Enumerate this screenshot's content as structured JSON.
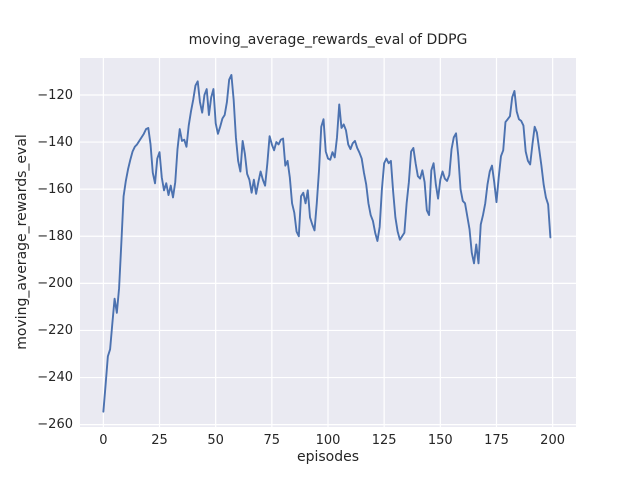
{
  "title": "moving_average_rewards_eval of DDPG",
  "colors": {
    "line": "#4c72b0",
    "axes_background": "#eaeaf2",
    "grid": "#ffffff",
    "text": "#262626",
    "figure_background": "#ffffff"
  },
  "chart_data": {
    "type": "line",
    "title": "moving_average_rewards_eval of DDPG",
    "xlabel": "episodes",
    "ylabel": "moving_average_rewards_eval",
    "legend": null,
    "grid": true,
    "xlim": [
      -10.4,
      210.4
    ],
    "ylim": [
      -261,
      -104.3
    ],
    "x_tick_values": [
      0,
      25,
      50,
      75,
      100,
      125,
      150,
      175,
      200
    ],
    "x_tick_labels": [
      "0",
      "25",
      "50",
      "75",
      "100",
      "125",
      "150",
      "175",
      "200"
    ],
    "y_tick_values": [
      -260,
      -240,
      -220,
      -200,
      -180,
      -160,
      -140,
      -120
    ],
    "y_tick_labels": [
      "−260",
      "−240",
      "−220",
      "−200",
      "−180",
      "−160",
      "−140",
      "−120"
    ],
    "series": [
      {
        "name": "moving_average_rewards_eval",
        "x_start": 0,
        "x_step": 1,
        "values": [
          -254.5,
          -243,
          -231,
          -228,
          -217,
          -206.5,
          -212.5,
          -202,
          -183,
          -163,
          -156.5,
          -151.5,
          -147.5,
          -144,
          -142,
          -141,
          -139.5,
          -138,
          -136.5,
          -134.5,
          -134,
          -141,
          -153,
          -157.5,
          -147,
          -144.3,
          -155,
          -160.5,
          -157.5,
          -162.5,
          -158.5,
          -163.5,
          -157,
          -143,
          -134.5,
          -139.5,
          -139,
          -142,
          -133,
          -127,
          -122,
          -116,
          -114.2,
          -123,
          -127.5,
          -120,
          -117.5,
          -128.5,
          -121,
          -117.5,
          -132,
          -136.5,
          -133.5,
          -130,
          -128.5,
          -123,
          -113.5,
          -111.5,
          -122,
          -138,
          -148,
          -152.5,
          -139.5,
          -145,
          -153.5,
          -156,
          -161.5,
          -156,
          -162,
          -157,
          -152.5,
          -156,
          -158.5,
          -149,
          -137.5,
          -141,
          -143.5,
          -140,
          -141,
          -139,
          -138.5,
          -150,
          -148,
          -155,
          -166,
          -170,
          -178,
          -180,
          -163,
          -161.5,
          -166,
          -160.5,
          -172,
          -175,
          -177.5,
          -166,
          -152,
          -133.5,
          -130.3,
          -144,
          -147,
          -147.5,
          -144.3,
          -146.5,
          -138,
          -124,
          -134,
          -132.5,
          -135,
          -141,
          -143,
          -140.5,
          -139.5,
          -142.5,
          -144.5,
          -147,
          -153,
          -158,
          -166,
          -171,
          -173.5,
          -178.5,
          -182,
          -176,
          -160,
          -149,
          -147,
          -149,
          -148,
          -161,
          -172,
          -178,
          -181.5,
          -180,
          -178.5,
          -166,
          -157,
          -144,
          -142.5,
          -149,
          -154.5,
          -155.5,
          -152,
          -157,
          -169,
          -171,
          -152,
          -149,
          -158,
          -164,
          -156,
          -152.5,
          -155.5,
          -156.5,
          -154,
          -143,
          -138,
          -136.3,
          -146,
          -160,
          -165,
          -166,
          -171.5,
          -177,
          -187,
          -191.5,
          -183.5,
          -191.5,
          -175,
          -171,
          -166,
          -158,
          -152.5,
          -150,
          -157,
          -165.5,
          -155,
          -146,
          -143.5,
          -131.5,
          -130.3,
          -129,
          -121,
          -118.3,
          -127,
          -130.3,
          -131,
          -133,
          -144,
          -148,
          -149.5,
          -141,
          -133.5,
          -136,
          -143,
          -150,
          -158,
          -163.5,
          -166.5,
          -180.5
        ]
      }
    ]
  }
}
